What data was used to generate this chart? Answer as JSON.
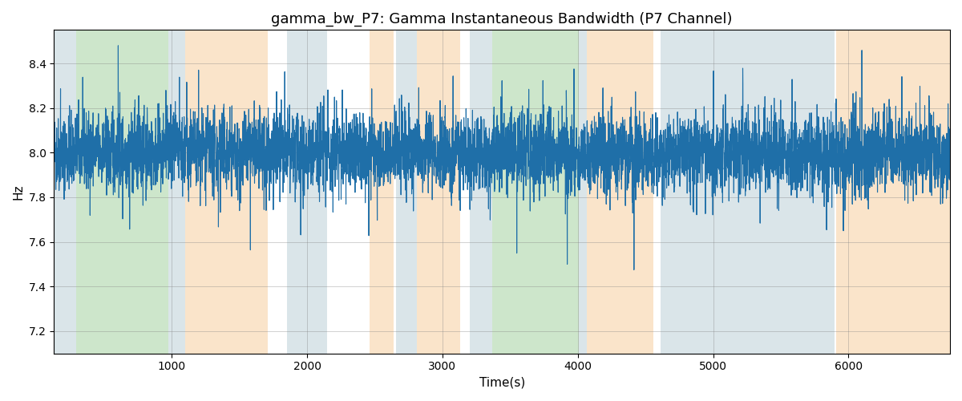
{
  "title": "gamma_bw_P7: Gamma Instantaneous Bandwidth (P7 Channel)",
  "xlabel": "Time(s)",
  "ylabel": "Hz",
  "ylim": [
    7.1,
    8.55
  ],
  "xlim": [
    130,
    6750
  ],
  "line_color": "#1f6fa8",
  "line_width": 0.8,
  "seed": 42,
  "n_points": 6500,
  "x_start": 130,
  "x_end": 6750,
  "mean": 8.0,
  "std": 0.1,
  "bands": [
    {
      "xmin": 130,
      "xmax": 295,
      "color": "#aec6cf",
      "alpha": 0.45
    },
    {
      "xmin": 295,
      "xmax": 975,
      "color": "#90c98d",
      "alpha": 0.45
    },
    {
      "xmin": 975,
      "xmax": 1100,
      "color": "#aec6cf",
      "alpha": 0.45
    },
    {
      "xmin": 1100,
      "xmax": 1710,
      "color": "#f5c48a",
      "alpha": 0.45
    },
    {
      "xmin": 1850,
      "xmax": 2150,
      "color": "#aec6cf",
      "alpha": 0.45
    },
    {
      "xmin": 2460,
      "xmax": 2640,
      "color": "#f5c48a",
      "alpha": 0.45
    },
    {
      "xmin": 2660,
      "xmax": 2810,
      "color": "#aec6cf",
      "alpha": 0.45
    },
    {
      "xmin": 2810,
      "xmax": 3130,
      "color": "#f5c48a",
      "alpha": 0.45
    },
    {
      "xmin": 3200,
      "xmax": 3370,
      "color": "#aec6cf",
      "alpha": 0.45
    },
    {
      "xmin": 3370,
      "xmax": 4010,
      "color": "#90c98d",
      "alpha": 0.45
    },
    {
      "xmin": 4010,
      "xmax": 4065,
      "color": "#aec6cf",
      "alpha": 0.45
    },
    {
      "xmin": 4065,
      "xmax": 4560,
      "color": "#f5c48a",
      "alpha": 0.45
    },
    {
      "xmin": 4610,
      "xmax": 5900,
      "color": "#aec6cf",
      "alpha": 0.45
    },
    {
      "xmin": 5910,
      "xmax": 6750,
      "color": "#f5c48a",
      "alpha": 0.45
    }
  ],
  "title_fontsize": 13,
  "label_fontsize": 11,
  "tick_fontsize": 10
}
